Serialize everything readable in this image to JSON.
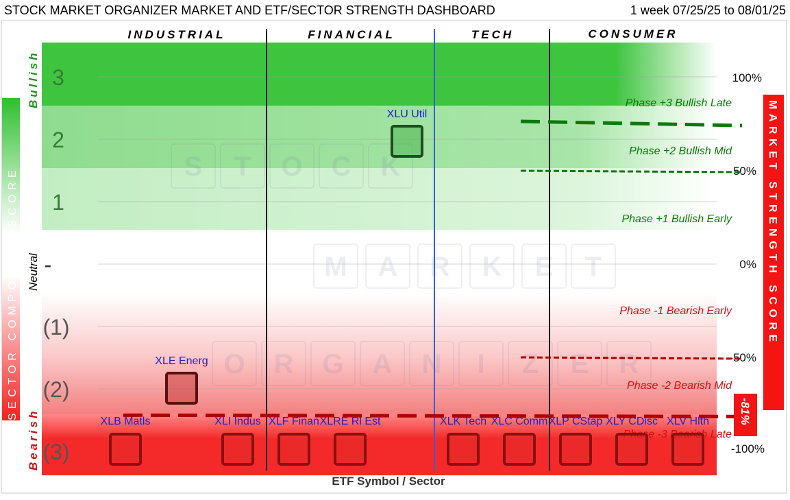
{
  "header": {
    "title": "STOCK MARKET ORGANIZER MARKET AND ETF/SECTOR STRENGTH DASHBOARD",
    "date_range": "1 week 07/25/25 to 08/01/25"
  },
  "watermark": [
    "S",
    "T",
    "O",
    "C",
    "K",
    "M",
    "A",
    "R",
    "K",
    "E",
    "T",
    "O",
    "R",
    "G",
    "A",
    "N",
    "I",
    "Z",
    "E",
    "R"
  ],
  "chart_data": {
    "type": "scatter",
    "xlabel": "ETF Symbol / Sector",
    "ylabel_left": "SECTOR COMPOSITE SCORE",
    "ylabel_right": "MARKET STRENGTH SCORE",
    "left_axis_labels": {
      "bullish": "Bullish",
      "neutral": "Neutral",
      "bearish": "Bearish"
    },
    "left_ticks": [
      {
        "label": "3",
        "value": 3
      },
      {
        "label": "2",
        "value": 2
      },
      {
        "label": "1",
        "value": 1
      },
      {
        "label": "-",
        "value": 0
      },
      {
        "label": "(1)",
        "value": -1
      },
      {
        "label": "(2)",
        "value": -2
      },
      {
        "label": "(3)",
        "value": -3
      }
    ],
    "right_ticks": [
      {
        "label": "100%",
        "value": 100
      },
      {
        "label": "50%",
        "value": 50
      },
      {
        "label": "0%",
        "value": 0
      },
      {
        "label": "-50%",
        "value": -50
      },
      {
        "label": "-100%",
        "value": -100
      }
    ],
    "sectors": [
      {
        "name": "INDUSTRIAL",
        "from": 0,
        "to": 3
      },
      {
        "name": "FINANCIAL",
        "from": 3,
        "to": 6
      },
      {
        "name": "TECH",
        "from": 6,
        "to": 8
      },
      {
        "name": "CONSUMER",
        "from": 8,
        "to": 11
      }
    ],
    "phases": [
      {
        "label": "Phase +3 Bullish Late",
        "level": 3
      },
      {
        "label": "Phase +2 Bullish Mid",
        "level": 2
      },
      {
        "label": "Phase +1 Bullish Early",
        "level": 1
      },
      {
        "label": "Phase -1 Bearish Early",
        "level": -1
      },
      {
        "label": "Phase -2 Bearish Mid",
        "level": -2
      },
      {
        "label": "Phase -3 Bearish Late",
        "level": -3
      }
    ],
    "threshold_lines": [
      {
        "value": 75,
        "color": "#0a7a0a"
      },
      {
        "value": 50,
        "color": "#0a7a0a"
      },
      {
        "value": -50,
        "color": "#b00000"
      },
      {
        "value": -81,
        "color": "#b00000"
      }
    ],
    "market_strength": {
      "value": -81,
      "label": "-81%"
    },
    "etfs": [
      {
        "label": "XLB Matls",
        "score": -3
      },
      {
        "label": "XLE Energ",
        "score": -2
      },
      {
        "label": "XLI Indus",
        "score": -3
      },
      {
        "label": "XLF Finan",
        "score": -3
      },
      {
        "label": "XLRE Rl Est",
        "score": -3
      },
      {
        "label": "XLU Util",
        "score": 2
      },
      {
        "label": "XLK Tech",
        "score": -3
      },
      {
        "label": "XLC Comm",
        "score": -3
      },
      {
        "label": "XLP CStap",
        "score": -3
      },
      {
        "label": "XLY CDisc",
        "score": -3
      },
      {
        "label": "XLV Hlth",
        "score": -3
      }
    ]
  },
  "colors": {
    "bull_dark": "#3fc43f",
    "bull_mid": "#8fdc8f",
    "bull_light": "#c8efc8",
    "bear_light": "#fbcdcd",
    "bear_mid": "#f48c8c",
    "bear_dark": "#f42a2a",
    "sector_divider": "#000000",
    "tech_divider": "#3060e0",
    "etf_label": "#2020cc",
    "right_badge": "#f41414",
    "phase_green": "#0a7a0a",
    "phase_red": "#d01010"
  }
}
